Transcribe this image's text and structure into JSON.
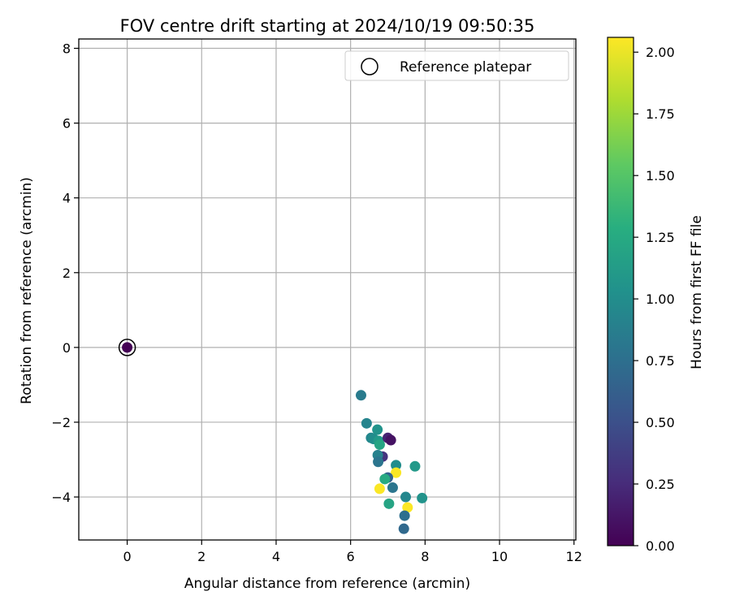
{
  "chart_data": {
    "type": "scatter",
    "title": "FOV centre drift starting at 2024/10/19 09:50:35",
    "xlabel": "Angular distance from reference (arcmin)",
    "ylabel": "Rotation from reference (arcmin)",
    "xlim": [
      -1.3,
      12.05
    ],
    "ylim": [
      -5.15,
      8.25
    ],
    "xticks": [
      0,
      2,
      4,
      6,
      8,
      10,
      12
    ],
    "yticks": [
      -4,
      -2,
      0,
      2,
      4,
      6,
      8
    ],
    "grid": true,
    "legend": {
      "placement": "top-right",
      "entries": [
        "Reference platepar"
      ]
    },
    "colorbar": {
      "label": "Hours from first FF file",
      "colormap": "viridis",
      "range": [
        0.0,
        2.06
      ],
      "ticks": [
        "0.00",
        "0.25",
        "0.50",
        "0.75",
        "1.00",
        "1.25",
        "1.50",
        "1.75",
        "2.00"
      ]
    },
    "reference": {
      "x": 0,
      "y": 0
    },
    "points": [
      {
        "x": 0.0,
        "y": 0.0,
        "c": 0.0
      },
      {
        "x": 6.28,
        "y": -1.28,
        "c": 0.85
      },
      {
        "x": 6.43,
        "y": -2.03,
        "c": 0.92
      },
      {
        "x": 6.72,
        "y": -2.2,
        "c": 1.05
      },
      {
        "x": 6.55,
        "y": -2.42,
        "c": 0.95
      },
      {
        "x": 6.62,
        "y": -2.45,
        "c": 1.0
      },
      {
        "x": 6.75,
        "y": -2.5,
        "c": 1.1
      },
      {
        "x": 6.78,
        "y": -2.6,
        "c": 1.2
      },
      {
        "x": 7.0,
        "y": -2.42,
        "c": 0.2
      },
      {
        "x": 7.08,
        "y": -2.48,
        "c": 0.1
      },
      {
        "x": 6.86,
        "y": -2.92,
        "c": 0.3
      },
      {
        "x": 6.73,
        "y": -2.88,
        "c": 0.9
      },
      {
        "x": 6.74,
        "y": -3.06,
        "c": 0.8
      },
      {
        "x": 7.22,
        "y": -3.15,
        "c": 1.0
      },
      {
        "x": 7.22,
        "y": -3.35,
        "c": 2.05
      },
      {
        "x": 7.73,
        "y": -3.18,
        "c": 1.1
      },
      {
        "x": 7.0,
        "y": -3.48,
        "c": 0.65
      },
      {
        "x": 6.92,
        "y": -3.52,
        "c": 1.25
      },
      {
        "x": 6.78,
        "y": -3.78,
        "c": 2.05
      },
      {
        "x": 7.13,
        "y": -3.75,
        "c": 0.8
      },
      {
        "x": 7.48,
        "y": -4.0,
        "c": 0.95
      },
      {
        "x": 7.92,
        "y": -4.03,
        "c": 1.05
      },
      {
        "x": 7.03,
        "y": -4.18,
        "c": 1.2
      },
      {
        "x": 7.53,
        "y": -4.28,
        "c": 2.05
      },
      {
        "x": 7.45,
        "y": -4.5,
        "c": 0.75
      },
      {
        "x": 7.43,
        "y": -4.85,
        "c": 0.7
      }
    ]
  }
}
